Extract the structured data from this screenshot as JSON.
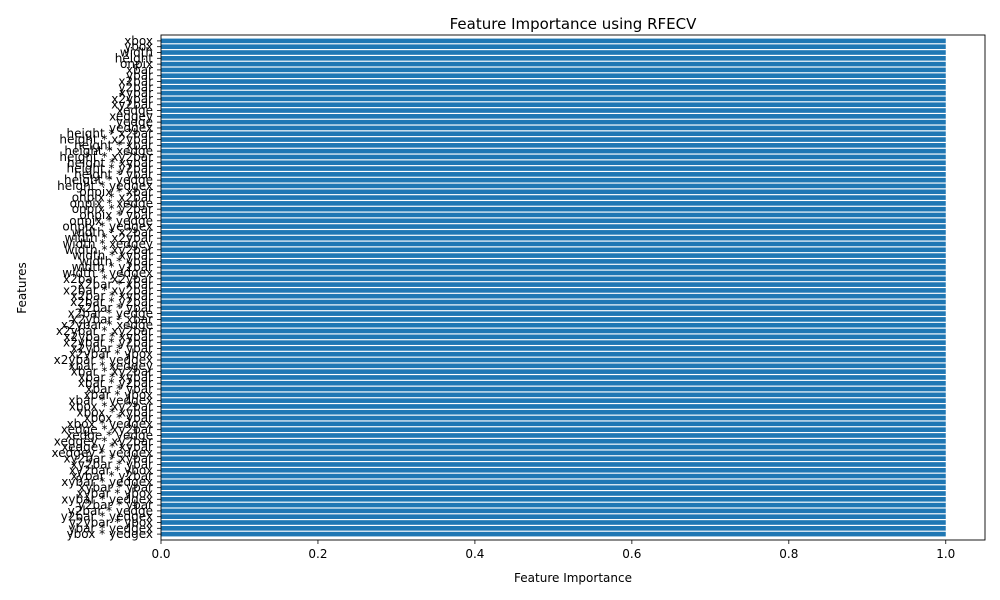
{
  "chart_data": {
    "type": "bar",
    "orientation": "horizontal",
    "title": "Feature Importance using RFECV",
    "xlabel": "Feature Importance",
    "ylabel": "Features",
    "xlim": [
      0,
      1.05
    ],
    "xticks": [
      0.0,
      0.2,
      0.4,
      0.6,
      0.8,
      1.0
    ],
    "xtick_labels": [
      "0.0",
      "0.2",
      "0.4",
      "0.6",
      "0.8",
      "1.0"
    ],
    "grid": false,
    "bar_color": "#1f77b4",
    "categories": [
      "xbox",
      "ybox",
      "width",
      "height",
      "onpix",
      "xbar",
      "ybar",
      "x2bar",
      "y2bar",
      "xybar",
      "x2ybar",
      "xy2bar",
      "xedge",
      "xedgey",
      "yedge",
      "yedgex",
      "height * x2bar",
      "height * x2ybar",
      "height * xbar",
      "height * xedge",
      "height * xy2bar",
      "height * xybar",
      "height * y2bar",
      "height * ybar",
      "height * yedge",
      "height * yedgex",
      "onpix * xbar",
      "onpix * x2bar",
      "onpix * xedge",
      "onpix * y2bar",
      "onpix * ybar",
      "onpix * yedge",
      "onpix * yedgex",
      "width * x2bar",
      "width * x2ybar",
      "width * xedgey",
      "width * xy2bar",
      "width * xybar",
      "width * ybar",
      "width * y2bar",
      "width * yedgex",
      "x2bar * x2ybar",
      "x2bar * xbar",
      "x2bar * xy2bar",
      "x2bar * xybar",
      "x2bar * y2bar",
      "x2bar * ybar",
      "x2bar * yedge",
      "x2ybar * xbar",
      "x2ybar * xedge",
      "x2ybar * xy2bar",
      "x2ybar * xybar",
      "x2ybar * y2bar",
      "x2ybar * ybar",
      "x2ybar * ybox",
      "x2ybar * yedgex",
      "xbar * xedgey",
      "xbar * xy2bar",
      "xbar * xybar",
      "xbar * y2bar",
      "xbar * ybar",
      "xbar * ybox",
      "xbar * yedgex",
      "xbox * xy2bar",
      "xbox * xybar",
      "xbox * ybar",
      "xbox * yedgex",
      "xedge * xy2bar",
      "xedge * yedge",
      "xedgey * xy2bar",
      "xedgey * xybar",
      "xedgey * yedgex",
      "xy2bar * xybar",
      "xy2bar * ybar",
      "xy2bar * ybox",
      "xybar * y2bar",
      "xybar * yedgex",
      "xybar * ybar",
      "xybar * ybox",
      "xybar * yedgex",
      "y2bar * ybar",
      "y2bar * yedge",
      "y2bar * yedgex",
      "y2ybar * ybox",
      "ybar * yedgex",
      "ybox * yedgex"
    ],
    "values": [
      1,
      1,
      1,
      1,
      1,
      1,
      1,
      1,
      1,
      1,
      1,
      1,
      1,
      1,
      1,
      1,
      1,
      1,
      1,
      1,
      1,
      1,
      1,
      1,
      1,
      1,
      1,
      1,
      1,
      1,
      1,
      1,
      1,
      1,
      1,
      1,
      1,
      1,
      1,
      1,
      1,
      1,
      1,
      1,
      1,
      1,
      1,
      1,
      1,
      1,
      1,
      1,
      1,
      1,
      1,
      1,
      1,
      1,
      1,
      1,
      1,
      1,
      1,
      1,
      1,
      1,
      1,
      1,
      1,
      1,
      1,
      1,
      1,
      1,
      1,
      1,
      1,
      1,
      1,
      1,
      1,
      1,
      1,
      1,
      1,
      1
    ]
  }
}
